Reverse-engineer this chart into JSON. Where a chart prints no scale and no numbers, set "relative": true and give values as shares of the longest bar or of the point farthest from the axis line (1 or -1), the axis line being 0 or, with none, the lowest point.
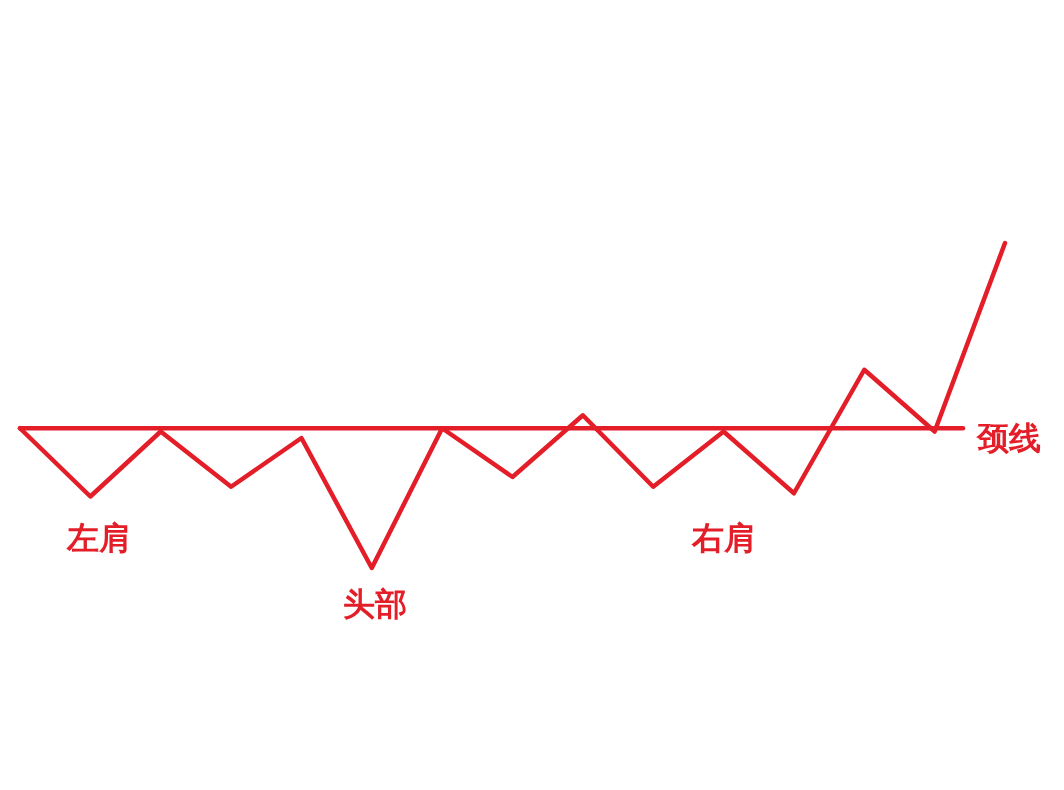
{
  "chart_data": {
    "type": "line",
    "relative": true,
    "categories": [
      null,
      null,
      null,
      null,
      null,
      null,
      null,
      null,
      null,
      null,
      null,
      null,
      null,
      null,
      null
    ],
    "series": [
      {
        "color": "#e31e28",
        "values": [
          0.43,
          0.22,
          0.42,
          0.25,
          0.4,
          0,
          0.43,
          0.28,
          0.47,
          0.25,
          0.42,
          0.23,
          0.61,
          0.42,
          1
        ]
      }
    ],
    "ref_lines": [
      {
        "axis": "y",
        "value": 0.43,
        "label": "颈线",
        "color": "#e31e28"
      }
    ],
    "annotations": [
      "左肩",
      "头部",
      "右肩"
    ]
  }
}
